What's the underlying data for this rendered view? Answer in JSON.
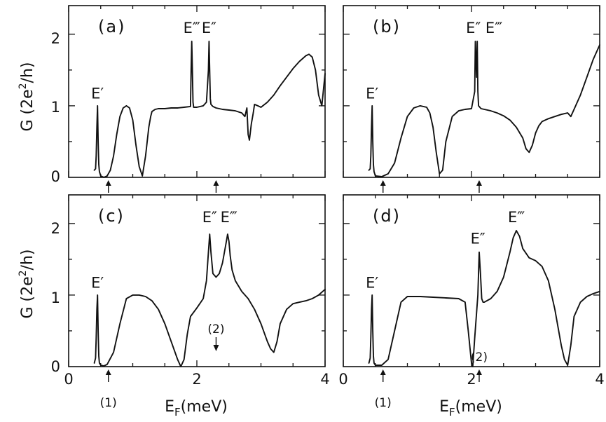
{
  "ylabel_parts": {
    "base": "G (2e",
    "exp": "2",
    "tail": "/h)"
  },
  "xlabel_parts": {
    "base": "E",
    "sub": "F",
    "tail": "(meV)"
  },
  "x_tick_labels": [
    "0",
    "2",
    "4"
  ],
  "y_tick_labels": [
    "0",
    "1",
    "2"
  ],
  "chart_data": [
    {
      "panel": "a",
      "type": "line",
      "label": "(a)",
      "xlim": [
        0,
        4
      ],
      "ylim": [
        0,
        2.4
      ],
      "x_ticks_major": [
        0,
        2,
        4
      ],
      "y_ticks": [
        0,
        1,
        2
      ],
      "show_x_tick_labels": false,
      "series": [
        {
          "x": [
            0.4,
            0.42,
            0.43,
            0.44,
            0.45,
            0.46,
            0.47,
            0.48,
            0.5,
            0.55,
            0.6,
            0.65,
            0.7,
            0.75,
            0.8,
            0.85,
            0.9,
            0.95,
            1.0,
            1.05,
            1.1,
            1.15,
            1.2,
            1.25,
            1.28,
            1.3,
            1.35,
            1.4,
            1.5,
            1.6,
            1.7,
            1.8,
            1.9,
            1.91,
            1.92,
            1.93,
            1.94,
            1.95,
            2.0,
            2.1,
            2.15,
            2.18,
            2.19,
            2.2,
            2.21,
            2.22,
            2.25,
            2.3,
            2.4,
            2.5,
            2.6,
            2.7,
            2.75,
            2.78,
            2.8,
            2.82,
            2.85,
            2.88,
            2.9,
            2.95,
            3.0,
            3.1,
            3.2,
            3.3,
            3.4,
            3.5,
            3.6,
            3.7,
            3.75,
            3.8,
            3.85,
            3.9,
            3.95,
            4.0
          ],
          "y": [
            0.1,
            0.12,
            0.3,
            0.7,
            1.0,
            0.5,
            0.18,
            0.08,
            0.02,
            0.0,
            0.02,
            0.1,
            0.3,
            0.6,
            0.85,
            0.97,
            1.0,
            0.97,
            0.8,
            0.45,
            0.15,
            0.02,
            0.3,
            0.7,
            0.85,
            0.92,
            0.95,
            0.96,
            0.96,
            0.97,
            0.97,
            0.98,
            0.99,
            1.5,
            1.9,
            1.5,
            1.05,
            0.98,
            0.98,
            1.0,
            1.05,
            1.5,
            1.9,
            1.5,
            1.1,
            1.02,
            0.99,
            0.97,
            0.95,
            0.94,
            0.93,
            0.9,
            0.85,
            0.97,
            0.6,
            0.52,
            0.75,
            0.9,
            1.02,
            1.0,
            0.98,
            1.05,
            1.15,
            1.28,
            1.4,
            1.52,
            1.62,
            1.7,
            1.72,
            1.68,
            1.5,
            1.15,
            1.0,
            1.45
          ]
        }
      ],
      "peak_labels": [
        {
          "text": "E′",
          "x": 0.45,
          "y": 1.1
        },
        {
          "text": "E‴",
          "x": 1.92,
          "y": 2.02
        },
        {
          "text": "E″",
          "x": 2.19,
          "y": 2.02
        }
      ],
      "markers": [
        {
          "x": 0.62,
          "type": "arrow-up"
        },
        {
          "x": 2.3,
          "type": "arrow-up"
        }
      ]
    },
    {
      "panel": "b",
      "type": "line",
      "label": "(b)",
      "xlim": [
        0,
        4
      ],
      "ylim": [
        0,
        2.4
      ],
      "x_ticks_major": [
        0,
        2,
        4
      ],
      "y_ticks": [
        0,
        1,
        2
      ],
      "show_x_tick_labels": false,
      "series": [
        {
          "x": [
            0.4,
            0.42,
            0.43,
            0.44,
            0.45,
            0.46,
            0.47,
            0.48,
            0.5,
            0.6,
            0.7,
            0.8,
            0.9,
            1.0,
            1.1,
            1.2,
            1.3,
            1.35,
            1.4,
            1.45,
            1.5,
            1.55,
            1.6,
            1.7,
            1.8,
            1.9,
            2.0,
            2.05,
            2.06,
            2.08,
            2.09,
            2.1,
            2.11,
            2.13,
            2.15,
            2.2,
            2.3,
            2.4,
            2.5,
            2.6,
            2.7,
            2.8,
            2.85,
            2.9,
            2.95,
            3.0,
            3.05,
            3.1,
            3.2,
            3.3,
            3.4,
            3.5,
            3.55,
            3.6,
            3.7,
            3.8,
            3.9,
            4.0
          ],
          "y": [
            0.1,
            0.12,
            0.3,
            0.7,
            1.0,
            0.5,
            0.18,
            0.08,
            0.02,
            0.01,
            0.05,
            0.2,
            0.55,
            0.85,
            0.97,
            1.0,
            0.98,
            0.9,
            0.7,
            0.35,
            0.05,
            0.1,
            0.5,
            0.85,
            0.93,
            0.95,
            0.96,
            1.2,
            1.9,
            1.4,
            1.9,
            1.2,
            1.0,
            0.98,
            0.96,
            0.95,
            0.93,
            0.9,
            0.86,
            0.8,
            0.7,
            0.55,
            0.4,
            0.35,
            0.45,
            0.62,
            0.72,
            0.78,
            0.82,
            0.85,
            0.88,
            0.9,
            0.85,
            0.95,
            1.15,
            1.4,
            1.65,
            1.85
          ]
        }
      ],
      "peak_labels": [
        {
          "text": "E′",
          "x": 0.45,
          "y": 1.1
        },
        {
          "text": "E″",
          "x": 2.03,
          "y": 2.02
        },
        {
          "text": "E‴",
          "x": 2.35,
          "y": 2.02
        }
      ],
      "markers": [
        {
          "x": 0.62,
          "type": "arrow-up"
        },
        {
          "x": 2.12,
          "type": "arrow-up"
        }
      ]
    },
    {
      "panel": "c",
      "type": "line",
      "label": "(c)",
      "xlim": [
        0,
        4
      ],
      "ylim": [
        0,
        2.4
      ],
      "x_ticks_major": [
        0,
        2,
        4
      ],
      "y_ticks": [
        0,
        1,
        2
      ],
      "show_x_tick_labels": true,
      "series": [
        {
          "x": [
            0.4,
            0.42,
            0.43,
            0.44,
            0.45,
            0.46,
            0.47,
            0.48,
            0.5,
            0.55,
            0.6,
            0.7,
            0.8,
            0.9,
            1.0,
            1.1,
            1.2,
            1.3,
            1.4,
            1.5,
            1.6,
            1.7,
            1.75,
            1.8,
            1.85,
            1.9,
            2.0,
            2.1,
            2.15,
            2.18,
            2.2,
            2.22,
            2.25,
            2.3,
            2.35,
            2.4,
            2.45,
            2.48,
            2.5,
            2.52,
            2.55,
            2.6,
            2.7,
            2.8,
            2.9,
            3.0,
            3.1,
            3.15,
            3.2,
            3.25,
            3.3,
            3.4,
            3.5,
            3.6,
            3.7,
            3.8,
            3.9,
            4.0
          ],
          "y": [
            0.05,
            0.12,
            0.4,
            0.8,
            1.0,
            0.5,
            0.15,
            0.05,
            0.02,
            0.01,
            0.03,
            0.2,
            0.6,
            0.95,
            1.0,
            1.0,
            0.98,
            0.92,
            0.8,
            0.6,
            0.35,
            0.1,
            0.0,
            0.1,
            0.45,
            0.7,
            0.82,
            0.95,
            1.2,
            1.6,
            1.85,
            1.6,
            1.3,
            1.25,
            1.3,
            1.45,
            1.7,
            1.85,
            1.75,
            1.55,
            1.35,
            1.2,
            1.05,
            0.95,
            0.8,
            0.6,
            0.35,
            0.25,
            0.2,
            0.35,
            0.6,
            0.8,
            0.88,
            0.9,
            0.92,
            0.95,
            1.0,
            1.08
          ]
        }
      ],
      "peak_labels": [
        {
          "text": "E′",
          "x": 0.45,
          "y": 1.1
        },
        {
          "text": "E″",
          "x": 2.2,
          "y": 2.02
        },
        {
          "text": "E‴",
          "x": 2.5,
          "y": 2.02
        }
      ],
      "markers": [
        {
          "x": 0.62,
          "type": "arrow-up",
          "text": "(1)"
        },
        {
          "x": 2.3,
          "type": "arrow-down",
          "text": "(2)"
        }
      ]
    },
    {
      "panel": "d",
      "type": "line",
      "label": "(d)",
      "xlim": [
        0,
        4
      ],
      "ylim": [
        0,
        2.4
      ],
      "x_ticks_major": [
        0,
        2,
        4
      ],
      "y_ticks": [
        0,
        1,
        2
      ],
      "show_x_tick_labels": true,
      "series": [
        {
          "x": [
            0.4,
            0.42,
            0.43,
            0.44,
            0.45,
            0.46,
            0.47,
            0.48,
            0.5,
            0.6,
            0.7,
            0.8,
            0.9,
            1.0,
            1.2,
            1.4,
            1.6,
            1.8,
            1.9,
            1.95,
            2.0,
            2.02,
            2.05,
            2.1,
            2.12,
            2.14,
            2.16,
            2.18,
            2.2,
            2.3,
            2.4,
            2.5,
            2.6,
            2.65,
            2.7,
            2.75,
            2.8,
            2.9,
            3.0,
            3.1,
            3.2,
            3.3,
            3.4,
            3.45,
            3.5,
            3.55,
            3.6,
            3.7,
            3.8,
            3.9,
            4.0
          ],
          "y": [
            0.05,
            0.12,
            0.4,
            0.8,
            1.0,
            0.5,
            0.15,
            0.05,
            0.02,
            0.02,
            0.1,
            0.5,
            0.9,
            0.98,
            0.98,
            0.97,
            0.96,
            0.95,
            0.9,
            0.5,
            0.05,
            0.0,
            0.4,
            1.0,
            1.6,
            1.3,
            0.95,
            0.9,
            0.9,
            0.95,
            1.05,
            1.25,
            1.6,
            1.8,
            1.9,
            1.82,
            1.65,
            1.52,
            1.48,
            1.4,
            1.2,
            0.8,
            0.3,
            0.1,
            0.02,
            0.3,
            0.7,
            0.9,
            0.98,
            1.02,
            1.05
          ]
        }
      ],
      "peak_labels": [
        {
          "text": "E′",
          "x": 0.45,
          "y": 1.1
        },
        {
          "text": "E″",
          "x": 2.1,
          "y": 1.72
        },
        {
          "text": "E‴",
          "x": 2.7,
          "y": 2.02
        }
      ],
      "markers": [
        {
          "x": 0.62,
          "type": "arrow-up",
          "text": "(1)"
        },
        {
          "x": 2.12,
          "type": "arrow-up",
          "text": "(2)"
        }
      ]
    }
  ]
}
